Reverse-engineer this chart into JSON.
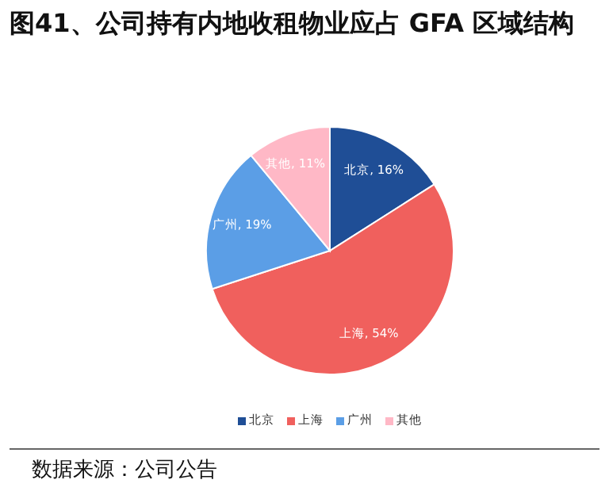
{
  "chart_data": {
    "type": "pie",
    "title": "图41、公司持有内地收租物业应占 GFA 区域结构",
    "categories": [
      "北京",
      "上海",
      "广州",
      "其他"
    ],
    "values": [
      16,
      54,
      19,
      11
    ],
    "colors": [
      "#1f4e96",
      "#f0605d",
      "#5b9ee6",
      "#ffb8c6"
    ],
    "value_labels": [
      "北京, 16%",
      "上海, 54%",
      "广州, 19%",
      "其他, 11%"
    ],
    "legend": "bottom",
    "annotations": [
      "数据来源：公司公告"
    ]
  }
}
